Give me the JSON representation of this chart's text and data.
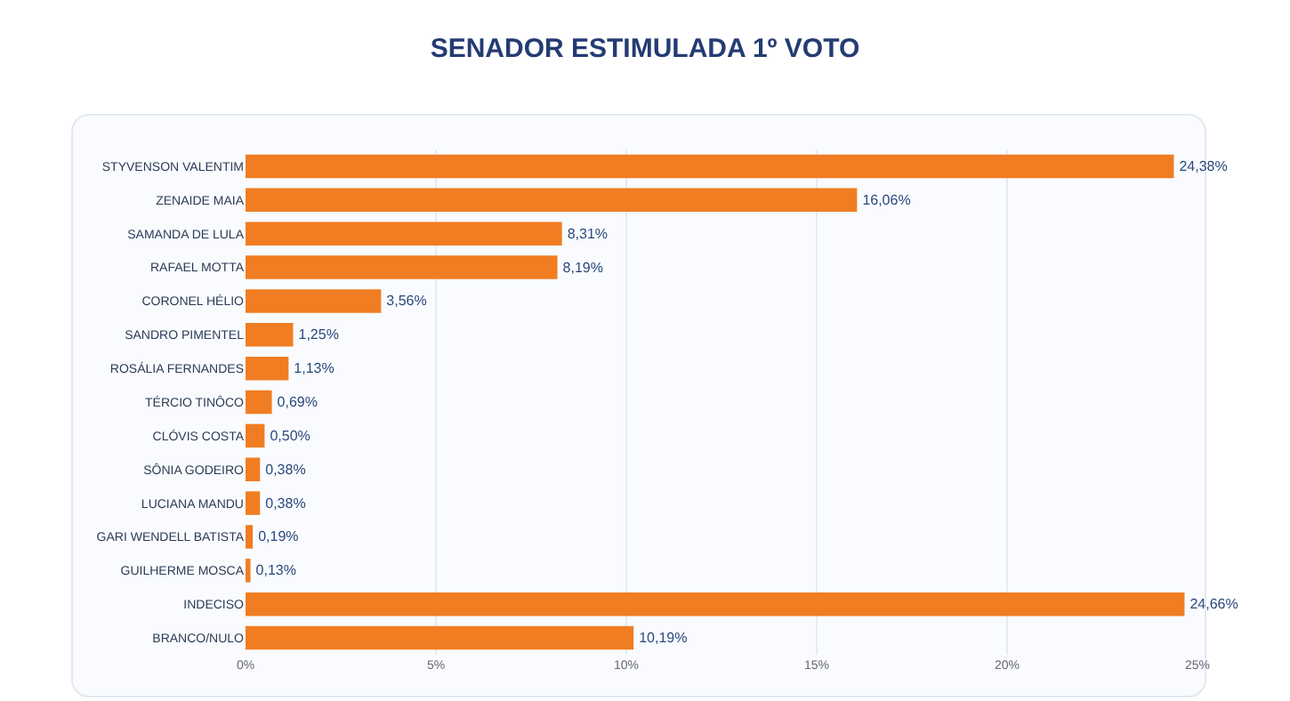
{
  "chart_data": {
    "type": "bar",
    "orientation": "horizontal",
    "title": "SENADOR ESTIMULADA 1º VOTO",
    "categories": [
      "STYVENSON VALENTIM",
      "ZENAIDE MAIA",
      "SAMANDA DE LULA",
      "RAFAEL MOTTA",
      "CORONEL HÉLIO",
      "SANDRO PIMENTEL",
      "ROSÁLIA FERNANDES",
      "TÉRCIO TINÔCO",
      "CLÓVIS COSTA",
      "SÔNIA GODEIRO",
      "LUCIANA MANDU",
      "GARI WENDELL BATISTA",
      "GUILHERME MOSCA",
      "INDECISO",
      "BRANCO/NULO"
    ],
    "values": [
      24.38,
      16.06,
      8.31,
      8.19,
      3.56,
      1.25,
      1.13,
      0.69,
      0.5,
      0.38,
      0.38,
      0.19,
      0.13,
      24.66,
      10.19
    ],
    "value_labels": [
      "24,38%",
      "16,06%",
      "8,31%",
      "8,19%",
      "3,56%",
      "1,25%",
      "1,13%",
      "0,69%",
      "0,50%",
      "0,38%",
      "0,38%",
      "0,19%",
      "0,13%",
      "24,66%",
      "10,19%"
    ],
    "color": "#f07d22",
    "xlim": [
      0,
      25
    ],
    "xticks": [
      {
        "value": 0,
        "label": "0%"
      },
      {
        "value": 5,
        "label": "5%"
      },
      {
        "value": 10,
        "label": "10%"
      },
      {
        "value": 15,
        "label": "15%"
      },
      {
        "value": 20,
        "label": "20%"
      },
      {
        "value": 25,
        "label": "25%"
      }
    ],
    "grid": "x"
  }
}
